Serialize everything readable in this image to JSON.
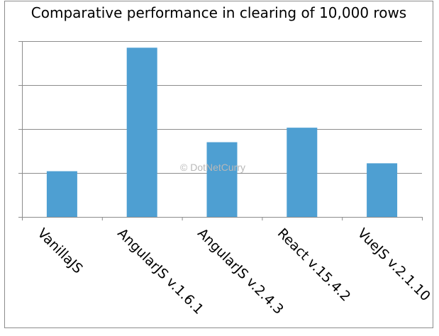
{
  "chart_data": {
    "type": "bar",
    "title": "Comparative performance in clearing of 10,000 rows",
    "categories": [
      "VanillaJS",
      "AngularJS v.1.6.1",
      "AngularJS v.2.4.3",
      "React v.15.4.2",
      "VueJS v.2.1.10"
    ],
    "values": [
      1.04,
      3.85,
      1.7,
      2.03,
      1.22
    ],
    "ylim": [
      0,
      4
    ],
    "xlabel": "",
    "ylabel": "",
    "grid": true,
    "legend": "none",
    "bar_color": "#4e9fd2",
    "gridline_color": "#8c8c8c"
  },
  "watermark": "© DotNetCurry"
}
